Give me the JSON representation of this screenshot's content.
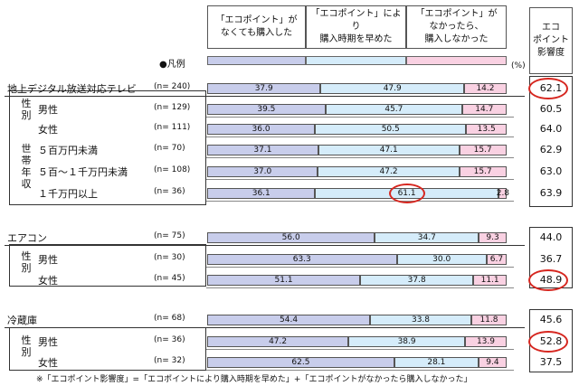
{
  "header": {
    "col1": "「エコポイント」が\nなくても購入した",
    "col2": "「エコポイント」により\n購入時期を早めた",
    "col3": "「エコポイント」が\nなかったら、\n購入しなかった",
    "score": "エコ\nポイント\n影響度",
    "legend_label": "●凡例",
    "pct": "(%)"
  },
  "colors": {
    "s1": "#c8cdeb",
    "s2": "#d5ecfa",
    "s3": "#f9d1e2",
    "highlight": "#d6261f"
  },
  "footnote": "※「エコポイント影響度」=「エコポイントにより購入時期を早めた」+「エコポイントがなかったら購入しなかった」",
  "chart_data": {
    "type": "bar",
    "stacked": true,
    "unit": "%",
    "series": [
      {
        "name": "「エコポイント」がなくても購入した"
      },
      {
        "name": "「エコポイント」により購入時期を早めた"
      },
      {
        "name": "「エコポイント」がなかったら、購入しなかった"
      }
    ],
    "rows": [
      {
        "group": "地上デジタル放送対応テレビ",
        "sub": "",
        "label": "地上デジタル放送対応テレビ",
        "n": "(n= 240)",
        "values": [
          37.9,
          47.9,
          14.2
        ],
        "score": "62.1",
        "score_circled": true
      },
      {
        "group": "地上デジタル放送対応テレビ",
        "sub": "性別",
        "label": "男性",
        "n": "(n= 129)",
        "values": [
          39.5,
          45.7,
          14.7
        ],
        "score": "60.5"
      },
      {
        "group": "地上デジタル放送対応テレビ",
        "sub": "性別",
        "label": "女性",
        "n": "(n= 111)",
        "values": [
          36.0,
          50.5,
          13.5
        ],
        "score": "64.0"
      },
      {
        "group": "地上デジタル放送対応テレビ",
        "sub": "世帯年収",
        "label": "５百万円未満",
        "n": "(n= 70)",
        "values": [
          37.1,
          47.1,
          15.7
        ],
        "score": "62.9"
      },
      {
        "group": "地上デジタル放送対応テレビ",
        "sub": "世帯年収",
        "label": "５百～１千万円未満",
        "n": "(n= 108)",
        "values": [
          37.0,
          47.2,
          15.7
        ],
        "score": "63.0"
      },
      {
        "group": "地上デジタル放送対応テレビ",
        "sub": "世帯年収",
        "label": "１千万円以上",
        "n": "(n= 36)",
        "values": [
          36.1,
          61.1,
          2.8
        ],
        "score": "63.9",
        "value_circled": 1
      },
      {
        "group": "エアコン",
        "sub": "",
        "label": "エアコン",
        "n": "(n= 75)",
        "values": [
          56.0,
          34.7,
          9.3
        ],
        "score": "44.0"
      },
      {
        "group": "エアコン",
        "sub": "性別",
        "label": "男性",
        "n": "(n= 30)",
        "values": [
          63.3,
          30.0,
          6.7
        ],
        "score": "36.7"
      },
      {
        "group": "エアコン",
        "sub": "性別",
        "label": "女性",
        "n": "(n= 45)",
        "values": [
          51.1,
          37.8,
          11.1
        ],
        "score": "48.9",
        "score_circled": true
      },
      {
        "group": "冷蔵庫",
        "sub": "",
        "label": "冷蔵庫",
        "n": "(n= 68)",
        "values": [
          54.4,
          33.8,
          11.8
        ],
        "score": "45.6"
      },
      {
        "group": "冷蔵庫",
        "sub": "性別",
        "label": "男性",
        "n": "(n= 36)",
        "values": [
          47.2,
          38.9,
          13.9
        ],
        "score": "52.8",
        "score_circled": true
      },
      {
        "group": "冷蔵庫",
        "sub": "性別",
        "label": "女性",
        "n": "(n= 32)",
        "values": [
          62.5,
          28.1,
          9.4
        ],
        "score": "37.5"
      }
    ],
    "sub_labels": {
      "gender": "性別",
      "income": "世帯年収"
    }
  }
}
